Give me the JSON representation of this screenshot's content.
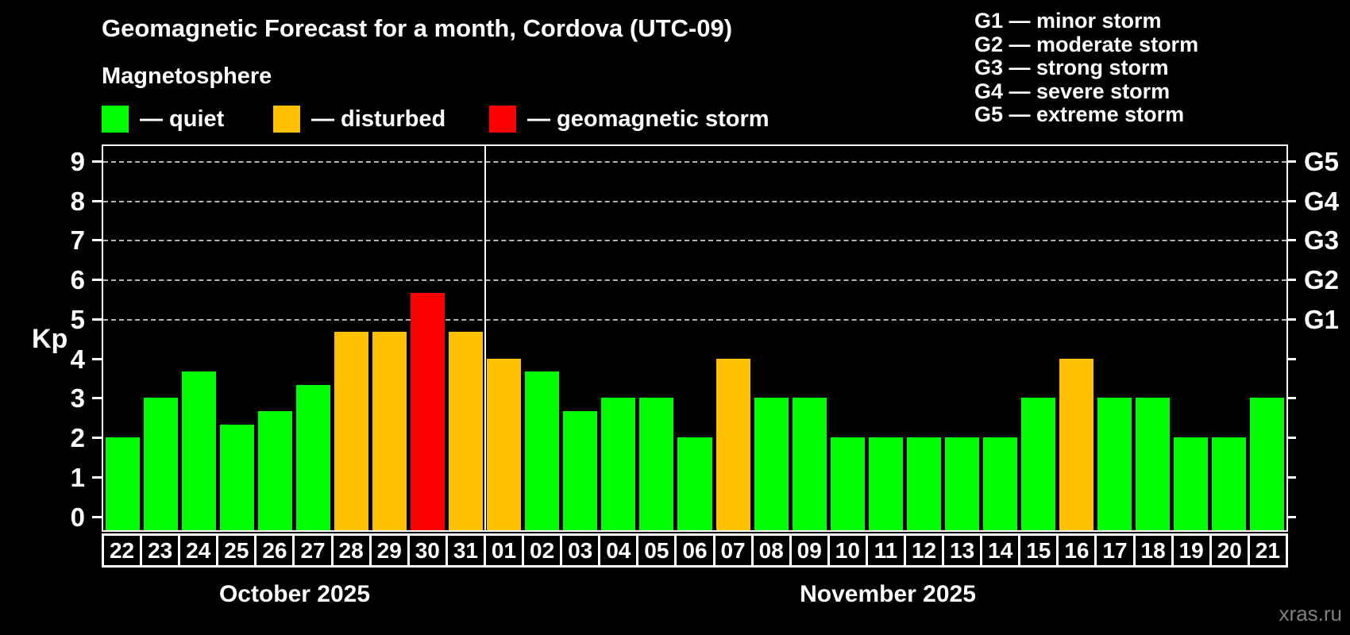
{
  "title": "Geomagnetic Forecast for a month, Cordova (UTC-09)",
  "subtitle": "Magnetosphere",
  "legend": {
    "quiet_label": "— quiet",
    "disturbed_label": "— disturbed",
    "storm_label": "— geomagnetic storm"
  },
  "g_scale_legend": [
    "G1 — minor storm",
    "G2 — moderate storm",
    "G3 — strong storm",
    "G4 — severe storm",
    "G5 — extreme storm"
  ],
  "y_axis": {
    "label": "Kp",
    "ticks": [
      0,
      1,
      2,
      3,
      4,
      5,
      6,
      7,
      8,
      9
    ]
  },
  "right_axis": {
    "labels": [
      "G1",
      "G2",
      "G3",
      "G4",
      "G5"
    ],
    "kp_positions": [
      5,
      6,
      7,
      8,
      9
    ]
  },
  "months": [
    {
      "label": "October 2025",
      "days": 10
    },
    {
      "label": "November 2025",
      "days": 21
    }
  ],
  "watermark": "xras.ru",
  "colors": {
    "quiet": "#00ff00",
    "disturbed": "#ffc000",
    "storm": "#ff0000",
    "background": "#000000",
    "grid": "#b3b3b3",
    "axis": "#ffffff",
    "watermark": "#808080"
  },
  "chart_data": {
    "type": "bar",
    "title": "Geomagnetic Forecast for a month, Cordova (UTC-09)",
    "xlabel": "",
    "ylabel": "Kp",
    "ylim": [
      -0.35,
      9.38
    ],
    "grid": "dashed horizontal at Kp 5-9",
    "legend_position": "top-left",
    "categories": [
      "22",
      "23",
      "24",
      "25",
      "26",
      "27",
      "28",
      "29",
      "30",
      "31",
      "01",
      "02",
      "03",
      "04",
      "05",
      "06",
      "07",
      "08",
      "09",
      "10",
      "11",
      "12",
      "13",
      "14",
      "15",
      "16",
      "17",
      "18",
      "19",
      "20",
      "21"
    ],
    "values": [
      2,
      3,
      3.67,
      2.33,
      2.67,
      3.33,
      4.67,
      4.67,
      5.67,
      4.67,
      4,
      3.67,
      2.67,
      3,
      3,
      2,
      4,
      3,
      3,
      2,
      2,
      2,
      2,
      2,
      3,
      4,
      3,
      3,
      2,
      2,
      3
    ],
    "statuses": [
      "quiet",
      "quiet",
      "quiet",
      "quiet",
      "quiet",
      "quiet",
      "disturbed",
      "disturbed",
      "storm",
      "disturbed",
      "disturbed",
      "quiet",
      "quiet",
      "quiet",
      "quiet",
      "quiet",
      "disturbed",
      "quiet",
      "quiet",
      "quiet",
      "quiet",
      "quiet",
      "quiet",
      "quiet",
      "quiet",
      "disturbed",
      "quiet",
      "quiet",
      "quiet",
      "quiet",
      "quiet"
    ],
    "gridlines_kp": [
      5,
      6,
      7,
      8,
      9
    ]
  }
}
